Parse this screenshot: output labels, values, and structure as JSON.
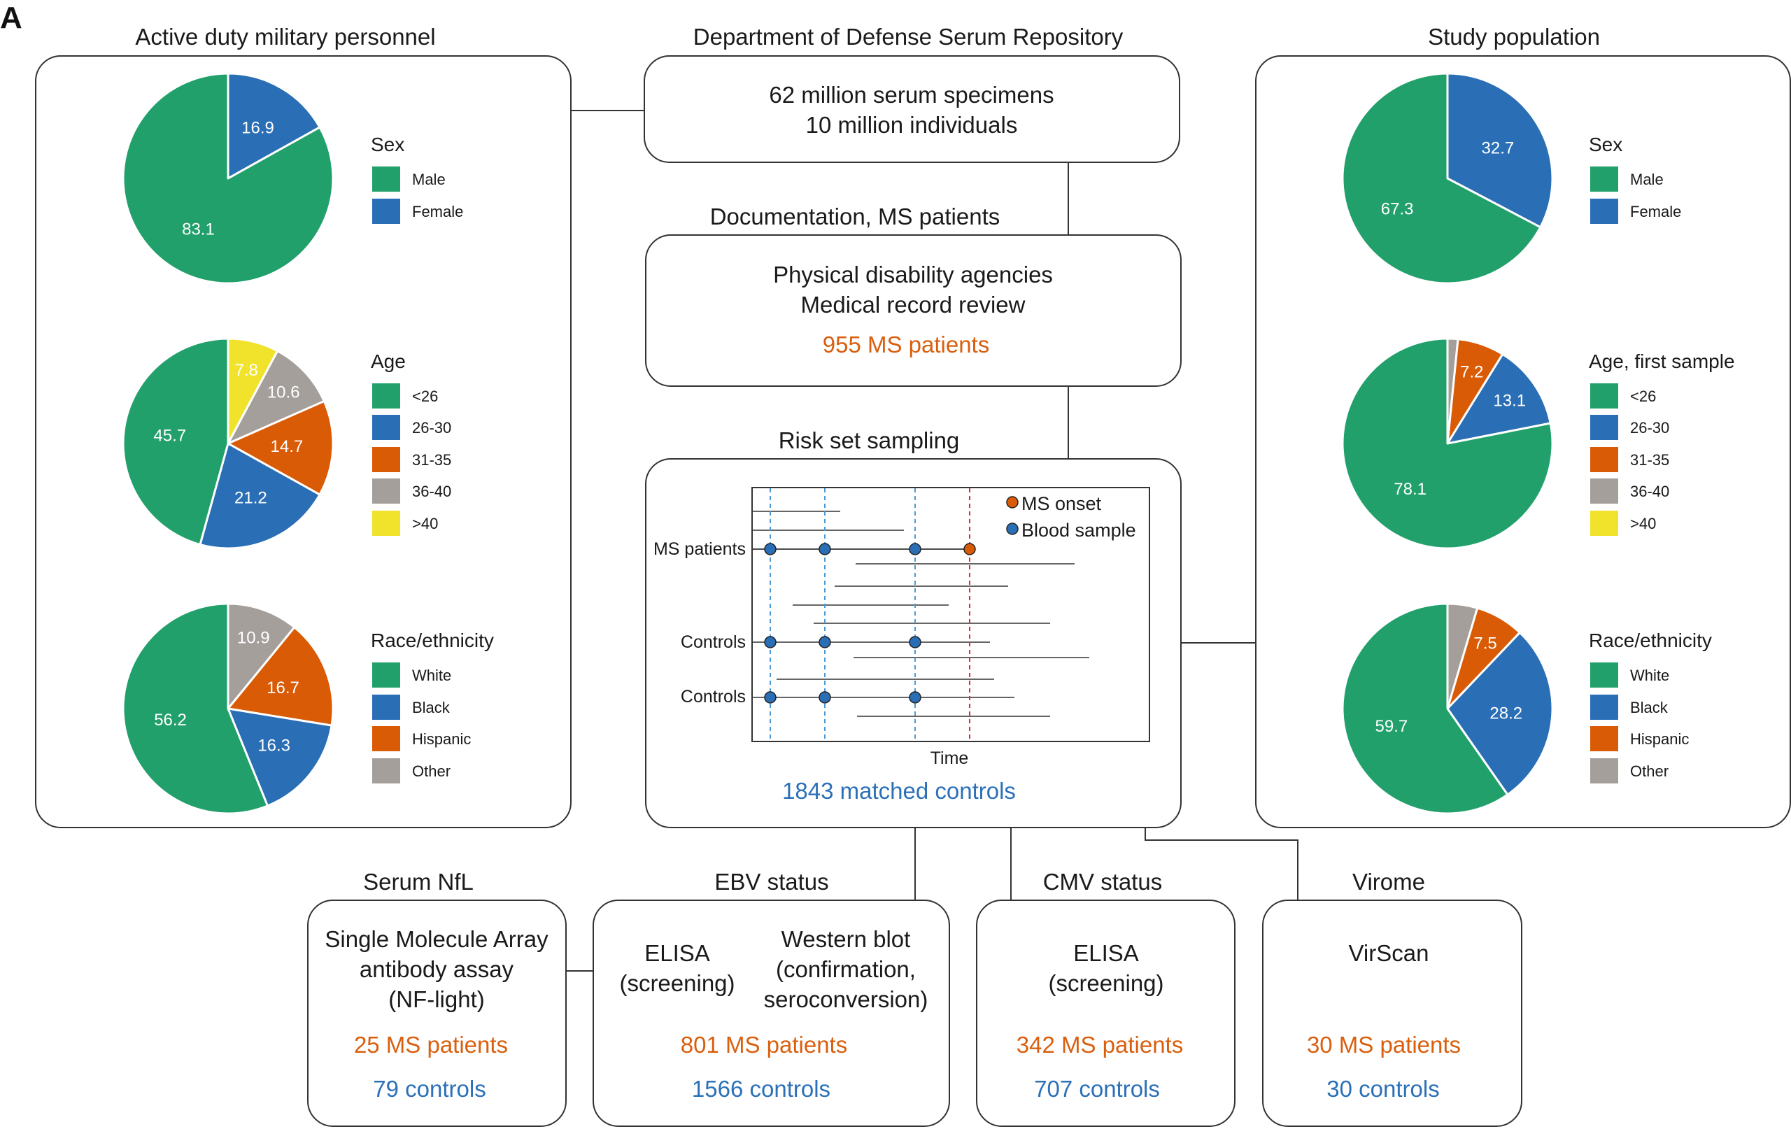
{
  "panel_letter": "A",
  "colors": {
    "green": "#22a06b",
    "blue": "#2a6eb5",
    "orange": "#d95b06",
    "gray": "#a59f9b",
    "yellow": "#f1e32c",
    "highlight_orange": "#d95f0e",
    "highlight_blue": "#2b70b8"
  },
  "left_panel": {
    "title": "Active duty military personnel",
    "sex": {
      "title": "Sex",
      "legend": [
        "Male",
        "Female"
      ]
    },
    "age": {
      "title": "Age",
      "legend": [
        "<26",
        "26-30",
        "31-35",
        "36-40",
        ">40"
      ]
    },
    "race": {
      "title": "Race/ethnicity",
      "legend": [
        "White",
        "Black",
        "Hispanic",
        "Other"
      ]
    }
  },
  "right_panel": {
    "title": "Study population",
    "sex": {
      "title": "Sex",
      "legend": [
        "Male",
        "Female"
      ]
    },
    "age": {
      "title": "Age, first sample",
      "legend": [
        "<26",
        "26-30",
        "31-35",
        "36-40",
        ">40"
      ]
    },
    "race": {
      "title": "Race/ethnicity",
      "legend": [
        "White",
        "Black",
        "Hispanic",
        "Other"
      ]
    }
  },
  "repository": {
    "title": "Department of Defense Serum Repository",
    "line1": "62 million serum specimens",
    "line2": "10 million individuals"
  },
  "documentation": {
    "title": "Documentation, MS patients",
    "line1": "Physical disability agencies",
    "line2": "Medical record review",
    "highlight": "955 MS patients"
  },
  "risk_set": {
    "title": "Risk set sampling",
    "row_ms": "MS patients",
    "row_controls_1": "Controls",
    "row_controls_2": "Controls",
    "legend_onset": "MS onset",
    "legend_blood": "Blood sample",
    "axis_label": "Time",
    "highlight": "1843 matched controls"
  },
  "nfl": {
    "title": "Serum NfL",
    "line1": "Single Molecule Array",
    "line2": "antibody assay",
    "line3": "(NF-light)",
    "patients": "25 MS patients",
    "controls": "79 controls"
  },
  "ebv": {
    "title": "EBV status",
    "col1_line1": "ELISA",
    "col1_line2": "(screening)",
    "col2_line1": "Western blot",
    "col2_line2": "(confirmation,",
    "col2_line3": "seroconversion)",
    "patients": "801 MS patients",
    "controls": "1566 controls"
  },
  "cmv": {
    "title": "CMV status",
    "line1": "ELISA",
    "line2": "(screening)",
    "patients": "342 MS patients",
    "controls": "707 controls"
  },
  "virome": {
    "title": "Virome",
    "line1": "VirScan",
    "patients": "30 MS patients",
    "controls": "30 controls"
  },
  "chart_data": [
    {
      "type": "pie",
      "title": "Sex",
      "group": "Active duty military personnel",
      "categories": [
        "Male",
        "Female"
      ],
      "values": [
        83.1,
        16.9
      ],
      "labels": [
        "83.1",
        "16.9"
      ]
    },
    {
      "type": "pie",
      "title": "Age",
      "group": "Active duty military personnel",
      "categories": [
        "<26",
        "26-30",
        "31-35",
        "36-40",
        ">40"
      ],
      "values": [
        45.7,
        21.2,
        14.7,
        10.6,
        7.8
      ],
      "labels": [
        "45.7",
        "21.2",
        "14.7",
        "10.6",
        "7.8"
      ]
    },
    {
      "type": "pie",
      "title": "Race/ethnicity",
      "group": "Active duty military personnel",
      "categories": [
        "White",
        "Black",
        "Hispanic",
        "Other"
      ],
      "values": [
        56.2,
        16.3,
        16.7,
        10.9
      ],
      "labels": [
        "56.2",
        "16.3",
        "16.7",
        "10.9"
      ]
    },
    {
      "type": "pie",
      "title": "Sex",
      "group": "Study population",
      "categories": [
        "Male",
        "Female"
      ],
      "values": [
        67.3,
        32.7
      ],
      "labels": [
        "67.3",
        "32.7"
      ]
    },
    {
      "type": "pie",
      "title": "Age, first sample",
      "group": "Study population",
      "categories": [
        "<26",
        "26-30",
        "31-35",
        "36-40",
        ">40"
      ],
      "values": [
        78.1,
        13.1,
        7.2,
        1.6,
        0
      ],
      "labels": [
        "78.1",
        "13.1",
        "7.2",
        "",
        ""
      ]
    },
    {
      "type": "pie",
      "title": "Race/ethnicity",
      "group": "Study population",
      "categories": [
        "White",
        "Black",
        "Hispanic",
        "Other"
      ],
      "values": [
        59.7,
        28.2,
        7.5,
        4.6
      ],
      "labels": [
        "59.7",
        "28.2",
        "7.5",
        ""
      ]
    }
  ]
}
